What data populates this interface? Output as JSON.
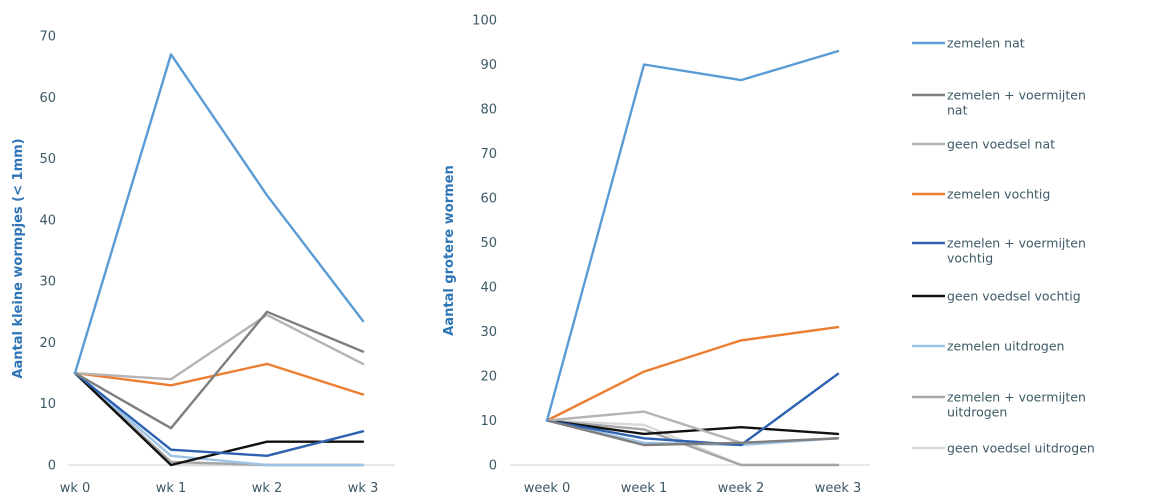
{
  "chart_data": [
    {
      "type": "line",
      "ylabel": "Aantal kleine wormpjes (< 1mm)",
      "categories": [
        "wk 0",
        "wk 1",
        "wk 2",
        "wk 3"
      ],
      "ylim": [
        0,
        70
      ],
      "yticks": [
        0,
        10,
        20,
        30,
        40,
        50,
        60,
        70
      ],
      "series": [
        {
          "name": "zemelen nat",
          "values": [
            15,
            67,
            44,
            23.5
          ]
        },
        {
          "name": "zemelen + voermijten nat",
          "values": [
            15,
            6,
            25,
            18.5
          ]
        },
        {
          "name": "geen voedsel nat",
          "values": [
            15,
            14,
            24.5,
            16.5
          ]
        },
        {
          "name": "zemelen vochtig",
          "values": [
            15,
            13,
            16.5,
            11.5
          ]
        },
        {
          "name": "zemelen + voermijten vochtig",
          "values": [
            15,
            2.5,
            1.5,
            5.5
          ]
        },
        {
          "name": "geen voedsel vochtig",
          "values": [
            15,
            0,
            3.8,
            3.8
          ]
        },
        {
          "name": "zemelen uitdrogen",
          "values": [
            15,
            1.5,
            0,
            0
          ]
        },
        {
          "name": "zemelen + voermijten uitdrogen",
          "values": [
            15,
            0.5,
            0,
            0
          ]
        },
        {
          "name": "geen voedsel uitdrogen",
          "values": [
            15,
            0,
            0,
            0
          ]
        }
      ]
    },
    {
      "type": "line",
      "ylabel": "Aantal grotere wormen",
      "categories": [
        "week 0",
        "week 1",
        "week 2",
        "week 3"
      ],
      "ylim": [
        0,
        100
      ],
      "yticks": [
        0,
        10,
        20,
        30,
        40,
        50,
        60,
        70,
        80,
        90,
        100
      ],
      "legend": "right",
      "series": [
        {
          "name": "zemelen nat",
          "values": [
            10,
            90,
            86.5,
            93
          ]
        },
        {
          "name": "zemelen + voermijten nat",
          "values": [
            10,
            4.5,
            5,
            6
          ]
        },
        {
          "name": "geen voedsel nat",
          "values": [
            10,
            12,
            5,
            6
          ]
        },
        {
          "name": "zemelen vochtig",
          "values": [
            10,
            21,
            28,
            31
          ]
        },
        {
          "name": "zemelen + voermijten vochtig",
          "values": [
            10,
            6,
            4.5,
            20.5
          ]
        },
        {
          "name": "geen voedsel vochtig",
          "values": [
            10,
            7,
            8.5,
            7
          ]
        },
        {
          "name": "zemelen uitdrogen",
          "values": [
            10,
            5,
            4.5,
            6
          ]
        },
        {
          "name": "zemelen + voermijten uitdrogen",
          "values": [
            10,
            8,
            0,
            0
          ]
        },
        {
          "name": "geen voedsel uitdrogen",
          "values": [
            10,
            9,
            0,
            0
          ]
        }
      ]
    }
  ],
  "legend": [
    {
      "lines": [
        "zemelen nat"
      ],
      "color": "#5b9bd5"
    },
    {
      "lines": [
        "zemelen + voermijten",
        "nat"
      ],
      "color": "#7f7f7f"
    },
    {
      "lines": [
        "geen voedsel nat"
      ],
      "color": "#b4b4b4"
    },
    {
      "lines": [
        "zemelen vochtig"
      ],
      "color": "#ed7d31"
    },
    {
      "lines": [
        "zemelen + voermijten",
        "vochtig"
      ],
      "color": "#2e62b0"
    },
    {
      "lines": [
        "geen voedsel vochtig"
      ],
      "color": "#111111"
    },
    {
      "lines": [
        "zemelen uitdrogen"
      ],
      "color": "#9dc3e6"
    },
    {
      "lines": [
        "zemelen + voermijten",
        "uitdrogen"
      ],
      "color": "#a6a6a6"
    },
    {
      "lines": [
        "geen voedsel uitdrogen"
      ],
      "color": "#d9d9d9"
    }
  ],
  "colors": {
    "axis": "#d9d9d9",
    "tick_text": "#3d5a66",
    "ylabel": "#2e75b6",
    "series": [
      "#5b9bd5",
      "#7f7f7f",
      "#b4b4b4",
      "#ed7d31",
      "#2e62b0",
      "#111111",
      "#9dc3e6",
      "#a6a6a6",
      "#d9d9d9"
    ]
  }
}
